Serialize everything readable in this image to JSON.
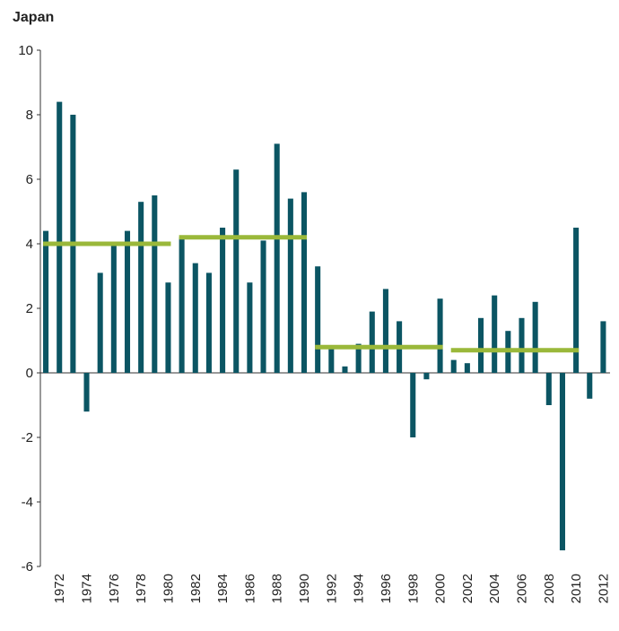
{
  "chart_data": {
    "type": "bar",
    "title": "Japan",
    "x": [
      1971,
      1972,
      1973,
      1974,
      1975,
      1976,
      1977,
      1978,
      1979,
      1980,
      1981,
      1982,
      1983,
      1984,
      1985,
      1986,
      1987,
      1988,
      1989,
      1990,
      1991,
      1992,
      1993,
      1994,
      1995,
      1996,
      1997,
      1998,
      1999,
      2000,
      2001,
      2002,
      2003,
      2004,
      2005,
      2006,
      2007,
      2008,
      2009,
      2010,
      2011,
      2012
    ],
    "values": [
      4.4,
      8.4,
      8.0,
      -1.2,
      3.1,
      4.0,
      4.4,
      5.3,
      5.5,
      2.8,
      4.2,
      3.4,
      3.1,
      4.5,
      6.3,
      2.8,
      4.1,
      7.1,
      5.4,
      5.6,
      3.3,
      0.8,
      0.2,
      0.9,
      1.9,
      2.6,
      1.6,
      -2.0,
      -0.2,
      2.3,
      0.4,
      0.3,
      1.7,
      2.4,
      1.3,
      1.7,
      2.2,
      -1.0,
      -5.5,
      4.5,
      -0.8,
      1.6
    ],
    "color": "#0b5563",
    "averages": [
      {
        "start": 1971,
        "end": 1980,
        "value": 4.0
      },
      {
        "start": 1981,
        "end": 1990,
        "value": 4.2
      },
      {
        "start": 1991,
        "end": 2000,
        "value": 0.8
      },
      {
        "start": 2001,
        "end": 2010,
        "value": 0.7
      }
    ],
    "average_color": "#9ab83a",
    "xlim": [
      1970.6,
      2012.5
    ],
    "xticks": [
      1972,
      1974,
      1976,
      1978,
      1980,
      1982,
      1984,
      1986,
      1988,
      1990,
      1992,
      1994,
      1996,
      1998,
      2000,
      2002,
      2004,
      2006,
      2008,
      2010,
      2012
    ],
    "ylim": [
      -6,
      10
    ],
    "yticks": [
      -6,
      -4,
      -2,
      0,
      2,
      4,
      6,
      8,
      10
    ],
    "grid": false
  }
}
